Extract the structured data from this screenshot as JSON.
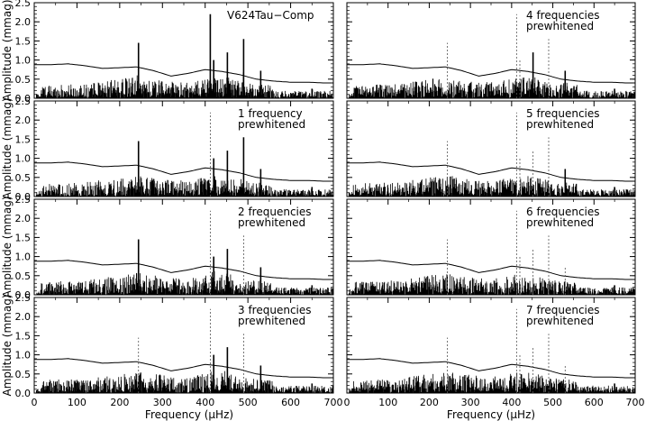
{
  "chart_data": {
    "type": "line",
    "layout": "2 columns x 4 rows of amplitude spectra",
    "xlabel": "Frequency (μHz)",
    "ylabel": "Amplitude (mmag)",
    "xlim": [
      0,
      700
    ],
    "ylim": [
      0,
      2.5
    ],
    "xticks": [
      "0",
      "100",
      "200",
      "300",
      "400",
      "500",
      "600",
      "700"
    ],
    "yticks": [
      "0.0",
      "0.5",
      "1.0",
      "1.5",
      "2.0",
      "2.5"
    ],
    "noise_envelope": {
      "x": [
        0,
        40,
        80,
        120,
        160,
        200,
        240,
        280,
        320,
        360,
        400,
        440,
        480,
        520,
        560,
        600,
        640,
        680,
        700
      ],
      "y": [
        0.88,
        0.88,
        0.9,
        0.85,
        0.78,
        0.8,
        0.82,
        0.72,
        0.58,
        0.65,
        0.75,
        0.7,
        0.62,
        0.5,
        0.45,
        0.42,
        0.42,
        0.4,
        0.4
      ]
    },
    "peaks": [
      {
        "freq": 244,
        "amp": 1.45
      },
      {
        "freq": 412,
        "amp": 2.2
      },
      {
        "freq": 420,
        "amp": 1.0
      },
      {
        "freq": 452,
        "amp": 1.2
      },
      {
        "freq": 490,
        "amp": 1.55
      },
      {
        "freq": 530,
        "amp": 0.72
      },
      {
        "freq": 650,
        "amp": 0.25
      }
    ],
    "panels": [
      {
        "label_lines": [
          "V624Tau−Comp"
        ],
        "prewhitened": []
      },
      {
        "label_lines": [
          "1 frequency",
          "prewhitened"
        ],
        "prewhitened": [
          412
        ]
      },
      {
        "label_lines": [
          "2 frequencies",
          "prewhitened"
        ],
        "prewhitened": [
          412,
          490
        ]
      },
      {
        "label_lines": [
          "3 frequencies",
          "prewhitened"
        ],
        "prewhitened": [
          412,
          490,
          244
        ]
      },
      {
        "label_lines": [
          "4 frequencies",
          "prewhitened"
        ],
        "prewhitened": [
          412,
          490,
          244,
          420
        ]
      },
      {
        "label_lines": [
          "5 frequencies",
          "prewhitened"
        ],
        "prewhitened": [
          412,
          490,
          244,
          420,
          452
        ]
      },
      {
        "label_lines": [
          "6 frequencies",
          "prewhitened"
        ],
        "prewhitened": [
          412,
          490,
          244,
          420,
          452,
          530
        ]
      },
      {
        "label_lines": [
          "7 frequencies",
          "prewhitened"
        ],
        "prewhitened": [
          412,
          490,
          244,
          420,
          452,
          530,
          410
        ]
      }
    ]
  }
}
